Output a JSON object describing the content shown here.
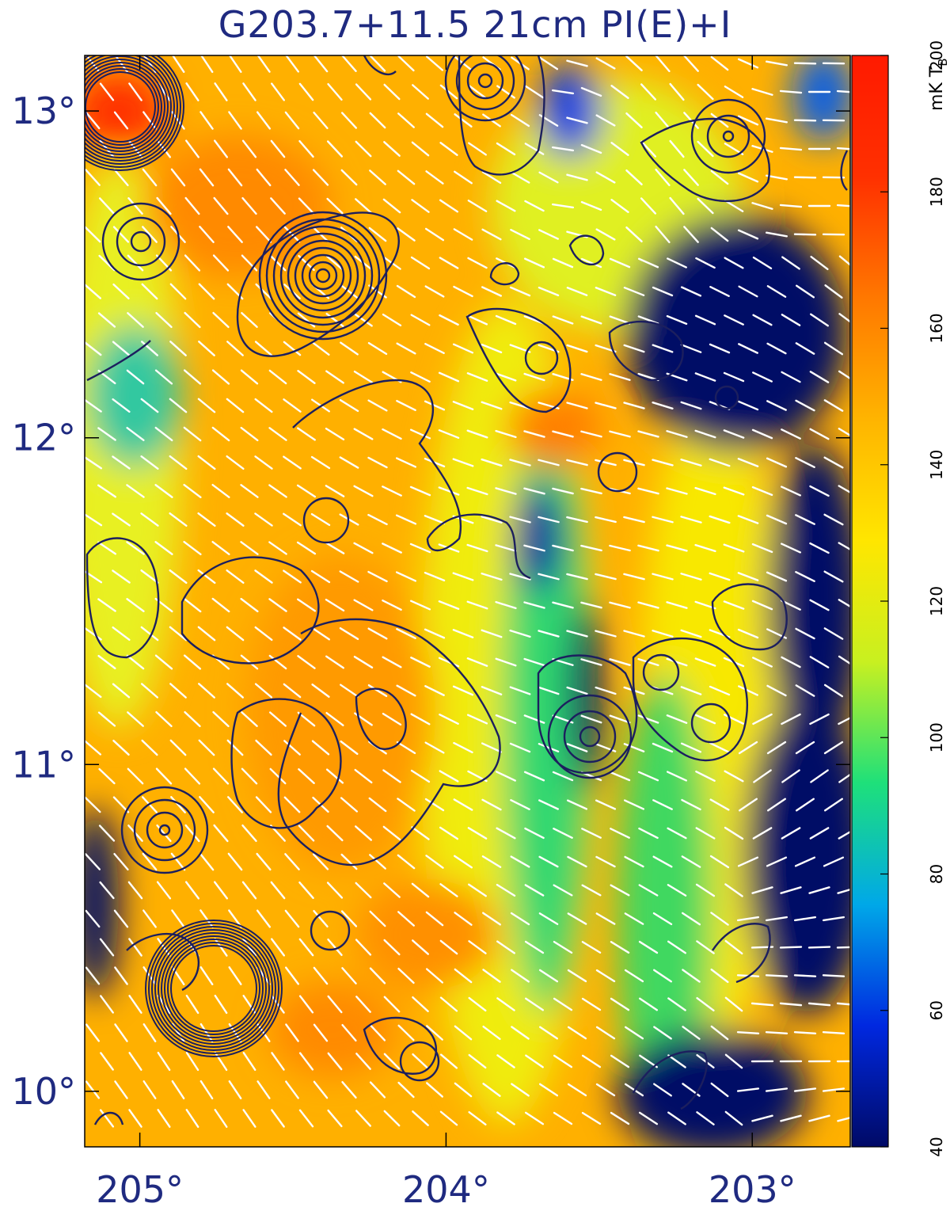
{
  "title": "G203.7+11.5 21cm PI(E)+I",
  "chart_data": {
    "type": "heatmap",
    "title": "G203.7+11.5 21cm PI(E)+I",
    "x_ticks": [
      {
        "value": 205,
        "label": "205°"
      },
      {
        "value": 204,
        "label": "204°"
      },
      {
        "value": 203,
        "label": "203°"
      }
    ],
    "y_ticks": [
      {
        "value": 13,
        "label": "13°"
      },
      {
        "value": 12,
        "label": "12°"
      },
      {
        "value": 11,
        "label": "11°"
      },
      {
        "value": 10,
        "label": "10°"
      }
    ],
    "xlim": [
      205.18,
      202.68
    ],
    "ylim": [
      9.83,
      13.17
    ],
    "colorbar": {
      "label": "mK T_B",
      "label_main": "mK T",
      "label_sub": "B",
      "range": [
        40,
        200
      ],
      "ticks": [
        40,
        60,
        80,
        100,
        120,
        140,
        160,
        180,
        200
      ],
      "colors": [
        "#000a66",
        "#0028e0",
        "#00a8e8",
        "#1ee07a",
        "#c8f020",
        "#ffe600",
        "#ffb400",
        "#ff7800",
        "#ff3000",
        "#ff1a00"
      ]
    },
    "overlays": [
      "polarization vectors",
      "total intensity contours"
    ]
  },
  "colors": {
    "axis": "#1f2a80",
    "contour": "#1c1f5e",
    "vector": "#ffffff"
  }
}
